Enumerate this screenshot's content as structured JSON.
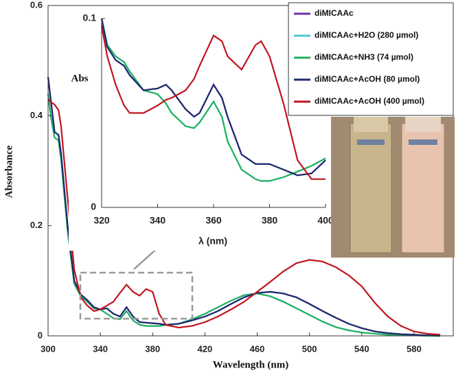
{
  "chart_data": [
    {
      "type": "line",
      "xlabel": "Wavelength (nm)",
      "ylabel": "Absorbance",
      "xlim": [
        300,
        610
      ],
      "ylim": [
        0,
        0.6
      ],
      "xticks": [
        300,
        340,
        380,
        420,
        460,
        500,
        540,
        580
      ],
      "yticks": [
        0,
        0.2,
        0.4,
        0.6
      ],
      "x": [
        300,
        302,
        305,
        308,
        310,
        315,
        320,
        325,
        330,
        335,
        340,
        345,
        350,
        355,
        360,
        365,
        370,
        375,
        380,
        385,
        390,
        400,
        410,
        420,
        430,
        440,
        450,
        460,
        470,
        480,
        490,
        500,
        510,
        520,
        530,
        540,
        550,
        560,
        570,
        580,
        590,
        600
      ],
      "series": [
        {
          "name": "diMICAAc",
          "color": "#7030a0",
          "values": [
            0.47,
            0.43,
            0.37,
            0.365,
            0.33,
            0.2,
            0.1,
            0.075,
            0.065,
            0.052,
            0.048,
            0.05,
            0.04,
            0.035,
            0.052,
            0.035,
            0.025,
            0.024,
            0.023,
            0.022,
            0.02,
            0.022,
            0.028,
            0.035,
            0.045,
            0.058,
            0.07,
            0.078,
            0.08,
            0.077,
            0.07,
            0.058,
            0.045,
            0.033,
            0.022,
            0.014,
            0.008,
            0.005,
            0.003,
            0.002,
            0.001,
            0
          ]
        },
        {
          "name": "diMICAAc+H2O (280 µmol)",
          "color": "#4bc8d8",
          "values": [
            0.44,
            0.4,
            0.36,
            0.355,
            0.32,
            0.19,
            0.095,
            0.072,
            0.062,
            0.05,
            0.048,
            0.04,
            0.032,
            0.03,
            0.045,
            0.028,
            0.02,
            0.018,
            0.018,
            0.018,
            0.02,
            0.022,
            0.03,
            0.04,
            0.052,
            0.064,
            0.074,
            0.077,
            0.072,
            0.062,
            0.05,
            0.038,
            0.026,
            0.016,
            0.01,
            0.006,
            0.004,
            0.002,
            0.001,
            0.001,
            0,
            0
          ]
        },
        {
          "name": "diMICAAc+NH3 (74 µmol)",
          "color": "#22b060",
          "values": [
            0.44,
            0.4,
            0.36,
            0.355,
            0.32,
            0.19,
            0.095,
            0.072,
            0.062,
            0.05,
            0.048,
            0.04,
            0.032,
            0.03,
            0.045,
            0.028,
            0.02,
            0.018,
            0.018,
            0.018,
            0.02,
            0.022,
            0.03,
            0.04,
            0.052,
            0.064,
            0.074,
            0.077,
            0.072,
            0.062,
            0.05,
            0.038,
            0.026,
            0.016,
            0.01,
            0.006,
            0.004,
            0.002,
            0.001,
            0.001,
            0,
            0
          ]
        },
        {
          "name": "diMICAAc+AcOH (80 µmol)",
          "color": "#1c2a6e",
          "values": [
            0.47,
            0.43,
            0.37,
            0.365,
            0.33,
            0.2,
            0.1,
            0.075,
            0.065,
            0.052,
            0.048,
            0.05,
            0.04,
            0.035,
            0.052,
            0.035,
            0.025,
            0.024,
            0.023,
            0.022,
            0.02,
            0.022,
            0.028,
            0.035,
            0.045,
            0.058,
            0.07,
            0.078,
            0.08,
            0.077,
            0.07,
            0.058,
            0.045,
            0.033,
            0.022,
            0.014,
            0.008,
            0.005,
            0.003,
            0.002,
            0.001,
            0
          ]
        },
        {
          "name": "diMICAAc+AcOH (400 µmol)",
          "color": "#c0141c",
          "values": [
            0.43,
            0.425,
            0.42,
            0.41,
            0.38,
            0.25,
            0.12,
            0.07,
            0.055,
            0.045,
            0.048,
            0.055,
            0.062,
            0.078,
            0.093,
            0.08,
            0.073,
            0.085,
            0.08,
            0.04,
            0.02,
            0.015,
            0.018,
            0.025,
            0.035,
            0.048,
            0.062,
            0.08,
            0.098,
            0.117,
            0.132,
            0.138,
            0.135,
            0.125,
            0.11,
            0.09,
            0.06,
            0.035,
            0.018,
            0.008,
            0.004,
            0.002
          ]
        }
      ]
    },
    {
      "type": "line",
      "xlabel": "λ (nm)",
      "ylabel": "Abs",
      "xlim": [
        320,
        400
      ],
      "ylim": [
        0,
        0.1
      ],
      "xticks": [
        320,
        340,
        360,
        380,
        400
      ],
      "yticks": [
        0,
        0.1
      ],
      "x": [
        320,
        322,
        325,
        328,
        330,
        335,
        340,
        343,
        345,
        350,
        353,
        355,
        360,
        363,
        365,
        370,
        375,
        377,
        380,
        385,
        390,
        395,
        400
      ],
      "series": [
        {
          "color": "#7030a0",
          "values": [
            0.1,
            0.085,
            0.078,
            0.075,
            0.07,
            0.062,
            0.063,
            0.065,
            0.062,
            0.052,
            0.048,
            0.05,
            0.065,
            0.058,
            0.048,
            0.028,
            0.023,
            0.023,
            0.023,
            0.02,
            0.017,
            0.018,
            0.025
          ]
        },
        {
          "color": "#4bc8d8",
          "values": [
            0.1,
            0.086,
            0.08,
            0.077,
            0.072,
            0.062,
            0.06,
            0.055,
            0.05,
            0.043,
            0.042,
            0.045,
            0.056,
            0.048,
            0.035,
            0.02,
            0.015,
            0.014,
            0.014,
            0.016,
            0.019,
            0.022,
            0.026
          ]
        },
        {
          "color": "#22b060",
          "values": [
            0.1,
            0.086,
            0.08,
            0.077,
            0.072,
            0.062,
            0.06,
            0.055,
            0.05,
            0.043,
            0.042,
            0.045,
            0.056,
            0.048,
            0.035,
            0.02,
            0.015,
            0.014,
            0.014,
            0.016,
            0.019,
            0.022,
            0.026
          ]
        },
        {
          "color": "#1c2a6e",
          "values": [
            0.1,
            0.085,
            0.078,
            0.075,
            0.07,
            0.062,
            0.063,
            0.065,
            0.062,
            0.052,
            0.048,
            0.05,
            0.065,
            0.058,
            0.048,
            0.028,
            0.023,
            0.023,
            0.023,
            0.02,
            0.017,
            0.018,
            0.025
          ]
        },
        {
          "color": "#c0141c",
          "values": [
            0.096,
            0.08,
            0.065,
            0.054,
            0.05,
            0.05,
            0.054,
            0.057,
            0.058,
            0.062,
            0.068,
            0.075,
            0.091,
            0.088,
            0.08,
            0.073,
            0.086,
            0.088,
            0.08,
            0.055,
            0.025,
            0.015,
            0.015
          ]
        }
      ]
    }
  ]
}
